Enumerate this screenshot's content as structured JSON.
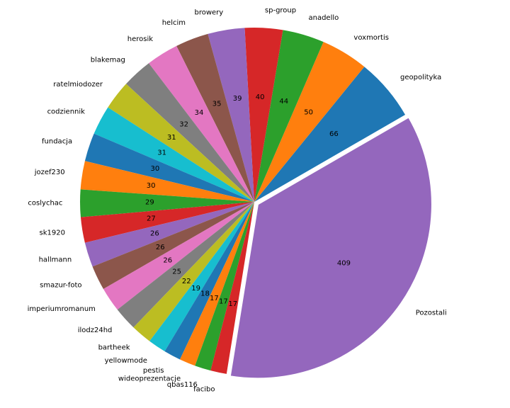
{
  "chart_data": {
    "type": "pie",
    "title": "",
    "labels": [
      "geopolityka",
      "voxmortis",
      "anadello",
      "sp-group",
      "browery",
      "helcim",
      "herosik",
      "blakemag",
      "ratelmiodozer",
      "codziennik",
      "fundacja",
      "jozef230",
      "coslychac",
      "sk1920",
      "hallmann",
      "smazur-foto",
      "imperiumromanum",
      "ilodz24hd",
      "bartheek",
      "yellowmode",
      "pestis",
      "wideoprezentacje",
      "qbas116",
      "facibo",
      "Pozostali"
    ],
    "values": [
      66,
      50,
      44,
      40,
      39,
      35,
      34,
      32,
      31,
      31,
      30,
      30,
      29,
      27,
      26,
      26,
      26,
      25,
      22,
      19,
      18,
      17,
      17,
      17,
      409
    ],
    "value_labels": [
      "66",
      "50",
      "44",
      "40",
      "39",
      "35",
      "34",
      "32",
      "31",
      "31",
      "30",
      "30",
      "29",
      "27",
      "26",
      "26",
      "26",
      "25",
      "22",
      "19",
      "18",
      "17",
      "17",
      "17",
      "409"
    ],
    "colors": [
      "#1f77b4",
      "#ff7f0e",
      "#2ca02c",
      "#d62728",
      "#9467bd",
      "#8c564b",
      "#e377c2",
      "#7f7f7f",
      "#bcbd22",
      "#17becf",
      "#1f77b4",
      "#ff7f0e",
      "#2ca02c",
      "#d62728",
      "#9467bd",
      "#8c564b",
      "#e377c2",
      "#7f7f7f",
      "#bcbd22",
      "#17becf",
      "#1f77b4",
      "#ff7f0e",
      "#2ca02c",
      "#d62728",
      "#9467bd"
    ],
    "start_angle_deg": 30,
    "direction": "counterclockwise",
    "exploded": [
      "Pozostali"
    ],
    "legend": "none"
  }
}
